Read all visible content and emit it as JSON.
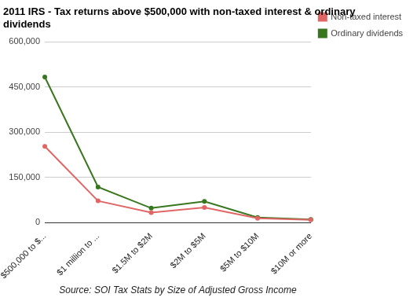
{
  "chart_data": {
    "type": "line",
    "title": "2011 IRS - Tax returns above $500,000 with non-taxed interest & ordinary dividends",
    "xlabel": "Source: SOI Tax Stats by Size of Adjusted Gross Income",
    "categories": [
      "$500,000 to $...",
      "$1 million to ...",
      "$1.5M to $2M",
      "$2M to $5M",
      "$5M to $10M",
      "$10M or more"
    ],
    "series": [
      {
        "name": "Non-taxed interest",
        "color": "#e06666",
        "values": [
          253000,
          72000,
          33000,
          50000,
          14000,
          9000
        ]
      },
      {
        "name": "Ordinary dividends",
        "color": "#38761d",
        "values": [
          483000,
          118000,
          48000,
          70000,
          17000,
          10000
        ]
      }
    ],
    "ylim": [
      0,
      600000
    ],
    "yticks": [
      0,
      {
        "value": 150000,
        "label": "150,000"
      },
      {
        "value": 300000,
        "label": "300,000"
      },
      {
        "value": 450000,
        "label": "450,000"
      },
      {
        "value": 600000,
        "label": "600,000"
      }
    ],
    "grid": true,
    "legend": "right",
    "marker": "circle"
  }
}
